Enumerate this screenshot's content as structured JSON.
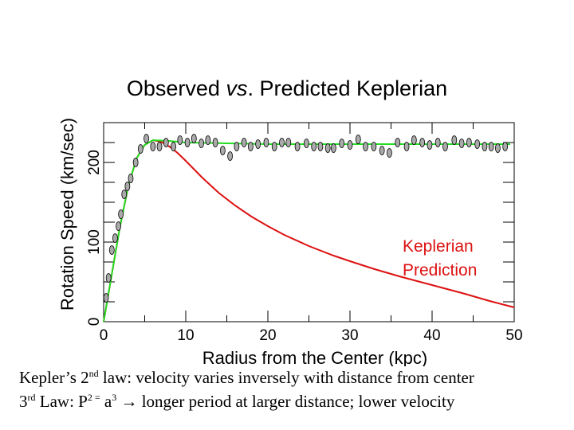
{
  "chart_data": {
    "type": "scatter",
    "title_parts": [
      "Observed ",
      "vs",
      ". Predicted Keplerian"
    ],
    "xlabel": "Radius from the Center (kpc)",
    "ylabel": "Rotation Speed (km/sec)",
    "xlim": [
      0,
      50
    ],
    "ylim": [
      0,
      250
    ],
    "x_ticks": [
      "0",
      "10",
      "20",
      "30",
      "40",
      "50"
    ],
    "y_ticks": [
      "0",
      "100",
      "200"
    ],
    "annotation": [
      "Keplerian",
      "Prediction"
    ],
    "colors": {
      "observed": "#aaaaaa",
      "flat_fit": "#22dd22",
      "keplerian": "#dd1111"
    },
    "series": [
      {
        "role": "observed",
        "x": [
          0.3,
          0.6,
          1.0,
          1.4,
          1.8,
          2.1,
          2.5,
          2.9,
          3.3,
          3.9,
          4.5,
          5.2,
          6.0,
          6.8,
          7.6,
          8.5,
          9.3,
          10.2,
          11.0,
          11.9,
          12.7,
          13.6,
          14.5,
          15.4,
          16.2,
          17.1,
          17.9,
          18.8,
          19.8,
          20.8,
          21.7,
          22.5,
          23.6,
          24.7,
          25.6,
          26.4,
          27.3,
          28.0,
          29.0,
          30.0,
          31.0,
          31.9,
          32.9,
          33.9,
          34.8,
          35.8,
          36.9,
          37.8,
          38.8,
          39.7,
          40.7,
          41.6,
          42.7,
          43.6,
          44.5,
          45.5,
          46.4,
          47.2,
          48.0,
          48.9
        ],
        "y": [
          30,
          55,
          90,
          105,
          120,
          135,
          160,
          170,
          180,
          200,
          217,
          230,
          220,
          220,
          225,
          220,
          228,
          225,
          230,
          224,
          228,
          225,
          215,
          208,
          220,
          225,
          220,
          223,
          225,
          220,
          225,
          225,
          220,
          224,
          220,
          220,
          218,
          218,
          224,
          222,
          229,
          220,
          220,
          215,
          212,
          225,
          220,
          228,
          225,
          222,
          225,
          220,
          228,
          224,
          225,
          223,
          220,
          220,
          218,
          220
        ]
      },
      {
        "role": "flat_fit",
        "x": [
          0,
          1,
          2,
          3,
          4,
          5,
          6,
          8,
          10,
          20,
          30,
          40,
          49.5
        ],
        "y": [
          0,
          60,
          120,
          170,
          205,
          222,
          228,
          227,
          225,
          223,
          223,
          223,
          223
        ]
      },
      {
        "role": "keplerian",
        "x": [
          0,
          1,
          2,
          3,
          4,
          5,
          6,
          7,
          8,
          9,
          10,
          12,
          14,
          16,
          18,
          20,
          22,
          25,
          28,
          30,
          33,
          36,
          40,
          44,
          47,
          50
        ],
        "y": [
          0,
          60,
          120,
          170,
          205,
          222,
          228,
          226,
          220,
          212,
          202,
          181,
          162,
          146,
          132,
          120,
          109,
          95,
          83,
          76,
          66,
          57,
          46,
          35,
          26,
          18
        ]
      }
    ]
  },
  "caption": {
    "line1_pre": "Kepler’s 2",
    "line1_sup": "nd",
    "line1_post": " law: velocity varies inversely with distance from center",
    "line2_a": "3",
    "line2_sup1": "rd",
    "line2_b": " Law: P",
    "line2_sup2": "2 =",
    "line2_c": " a",
    "line2_sup3": "3",
    "line2_arrow": " → ",
    "line2_d": "longer period at larger distance; lower velocity"
  }
}
